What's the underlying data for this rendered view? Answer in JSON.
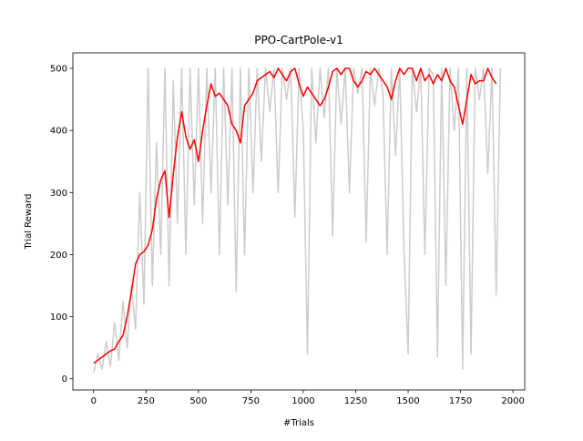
{
  "chart_data": {
    "type": "line",
    "title": "PPO-CartPole-v1",
    "xlabel": "#Trials",
    "ylabel": "Trial Reward",
    "xlim": [
      -99,
      2056
    ],
    "ylim": [
      -18,
      525
    ],
    "xticks": [
      0,
      250,
      500,
      750,
      1000,
      1250,
      1500,
      1750,
      2000
    ],
    "yticks": [
      0,
      100,
      200,
      300,
      400,
      500
    ],
    "series": [
      {
        "color": "#cccccc",
        "x": [
          0,
          20,
          40,
          60,
          80,
          100,
          120,
          140,
          160,
          180,
          200,
          220,
          240,
          260,
          280,
          300,
          320,
          340,
          360,
          380,
          400,
          420,
          440,
          460,
          480,
          500,
          520,
          540,
          560,
          580,
          600,
          620,
          640,
          660,
          680,
          700,
          720,
          740,
          760,
          780,
          800,
          820,
          840,
          860,
          880,
          900,
          920,
          940,
          960,
          980,
          1000,
          1020,
          1040,
          1060,
          1080,
          1100,
          1120,
          1140,
          1160,
          1180,
          1200,
          1220,
          1240,
          1260,
          1280,
          1300,
          1320,
          1340,
          1360,
          1380,
          1400,
          1420,
          1440,
          1460,
          1480,
          1500,
          1520,
          1540,
          1560,
          1580,
          1600,
          1620,
          1640,
          1660,
          1680,
          1700,
          1720,
          1740,
          1760,
          1780,
          1800,
          1820,
          1840,
          1860,
          1880,
          1900,
          1920,
          1940
        ],
        "values": [
          10,
          40,
          15,
          60,
          20,
          90,
          30,
          125,
          50,
          150,
          80,
          300,
          120,
          500,
          150,
          380,
          200,
          500,
          150,
          480,
          250,
          500,
          200,
          500,
          280,
          500,
          250,
          500,
          300,
          500,
          200,
          500,
          280,
          500,
          140,
          500,
          200,
          500,
          300,
          500,
          350,
          500,
          430,
          500,
          300,
          500,
          450,
          500,
          260,
          500,
          400,
          40,
          500,
          380,
          500,
          420,
          500,
          230,
          500,
          410,
          500,
          300,
          500,
          460,
          500,
          220,
          500,
          440,
          500,
          460,
          200,
          500,
          360,
          500,
          210,
          40,
          500,
          430,
          500,
          200,
          500,
          490,
          35,
          500,
          150,
          500,
          400,
          500,
          15,
          500,
          40,
          500,
          450,
          500,
          330,
          500,
          135,
          500
        ]
      },
      {
        "color": "#ff0000",
        "x": [
          0,
          20,
          40,
          60,
          80,
          100,
          120,
          140,
          160,
          180,
          200,
          220,
          240,
          260,
          280,
          300,
          320,
          340,
          360,
          380,
          400,
          420,
          440,
          460,
          480,
          500,
          520,
          540,
          560,
          580,
          600,
          620,
          640,
          660,
          680,
          700,
          720,
          740,
          760,
          780,
          800,
          820,
          840,
          860,
          880,
          900,
          920,
          940,
          960,
          980,
          1000,
          1020,
          1040,
          1060,
          1080,
          1100,
          1120,
          1140,
          1160,
          1180,
          1200,
          1220,
          1240,
          1260,
          1280,
          1300,
          1320,
          1340,
          1360,
          1380,
          1400,
          1420,
          1440,
          1460,
          1480,
          1500,
          1520,
          1540,
          1560,
          1580,
          1600,
          1620,
          1640,
          1660,
          1680,
          1700,
          1720,
          1740,
          1760,
          1780,
          1800,
          1820,
          1840,
          1860,
          1880,
          1900,
          1920
        ],
        "values": [
          25,
          30,
          35,
          40,
          45,
          48,
          60,
          70,
          100,
          140,
          185,
          200,
          205,
          215,
          240,
          290,
          320,
          335,
          260,
          330,
          390,
          430,
          390,
          370,
          385,
          350,
          400,
          440,
          475,
          455,
          460,
          450,
          440,
          410,
          400,
          380,
          440,
          450,
          460,
          480,
          485,
          490,
          495,
          485,
          500,
          490,
          480,
          495,
          500,
          475,
          455,
          470,
          460,
          450,
          440,
          450,
          470,
          495,
          500,
          490,
          500,
          500,
          480,
          470,
          480,
          495,
          490,
          500,
          490,
          480,
          470,
          450,
          480,
          500,
          490,
          500,
          500,
          480,
          500,
          480,
          490,
          475,
          490,
          480,
          500,
          480,
          470,
          440,
          410,
          450,
          490,
          475,
          480,
          480,
          500,
          485,
          475
        ]
      }
    ]
  }
}
